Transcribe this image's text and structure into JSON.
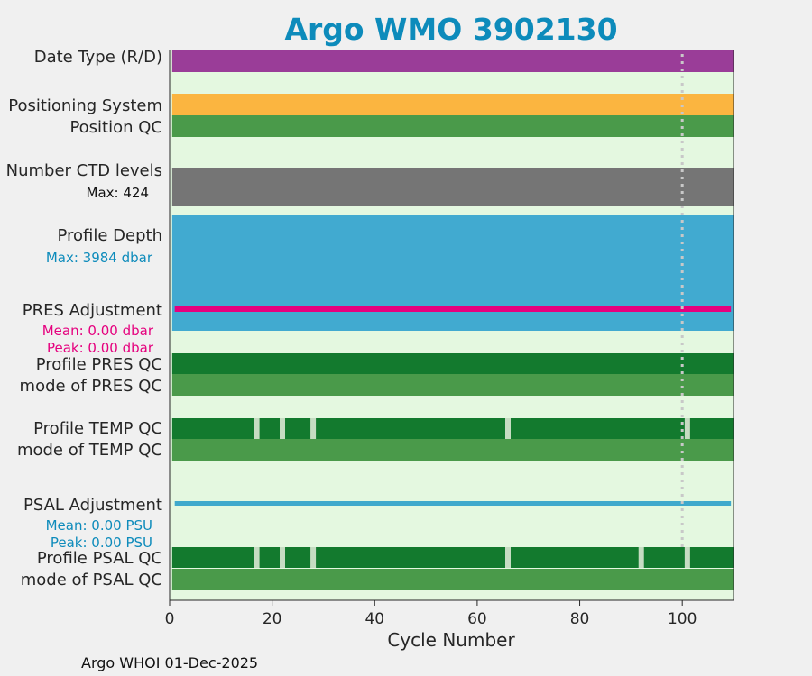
{
  "chart_data": {
    "type": "bar",
    "title": "Argo WMO 3902130",
    "xlabel": "Cycle Number",
    "footer": "Argo WHOI 01-Dec-2025",
    "xlim": [
      0,
      110
    ],
    "xticks": [
      0,
      20,
      40,
      60,
      80,
      100
    ],
    "reference_line_x": 100,
    "colors": {
      "background": "#f0f0f0",
      "plot_bg": "#e4f8e0",
      "title": "#0d8bbb",
      "date_type": "#9a3d98",
      "positioning": "#fbb540",
      "qc_good": "#4a9a4a",
      "qc_dark": "#137a2e",
      "ctd": "#757575",
      "depth": "#41aad0",
      "pres_adj": "#e5007e",
      "psal_adj": "#3fa9cc",
      "gap": "#c6dcc2",
      "ref_line": "#c8c8c8"
    },
    "rows": [
      {
        "label": "Date Type (R/D)",
        "color": "#9a3d98"
      },
      {
        "label": "Positioning System",
        "color": "#fbb540"
      },
      {
        "label": "Position QC",
        "color": "#4a9a4a"
      },
      {
        "label": "Number CTD levels",
        "color": "#757575",
        "annotation": "Max: 424"
      },
      {
        "label": "Profile Depth",
        "color": "#41aad0",
        "annotation": "Max: 3984 dbar"
      },
      {
        "label": "PRES Adjustment",
        "color": "#e5007e",
        "mean": "Mean: 0.00 dbar",
        "peak": "Peak: 0.00 dbar"
      },
      {
        "label": "Profile PRES QC",
        "color": "#137a2e"
      },
      {
        "label": "mode of PRES QC",
        "color": "#4a9a4a"
      },
      {
        "label": "Profile TEMP QC",
        "color": "#137a2e",
        "gaps": [
          17,
          22,
          28,
          66,
          101
        ]
      },
      {
        "label": "mode of TEMP QC",
        "color": "#4a9a4a"
      },
      {
        "label": "PSAL Adjustment",
        "color": "#3fa9cc",
        "mean": "Mean: 0.00 PSU",
        "peak": "Peak: 0.00 PSU"
      },
      {
        "label": "Profile PSAL QC",
        "color": "#137a2e",
        "gaps": [
          17,
          22,
          28,
          66,
          92,
          101
        ]
      },
      {
        "label": "mode of PSAL QC",
        "color": "#4a9a4a"
      }
    ]
  }
}
